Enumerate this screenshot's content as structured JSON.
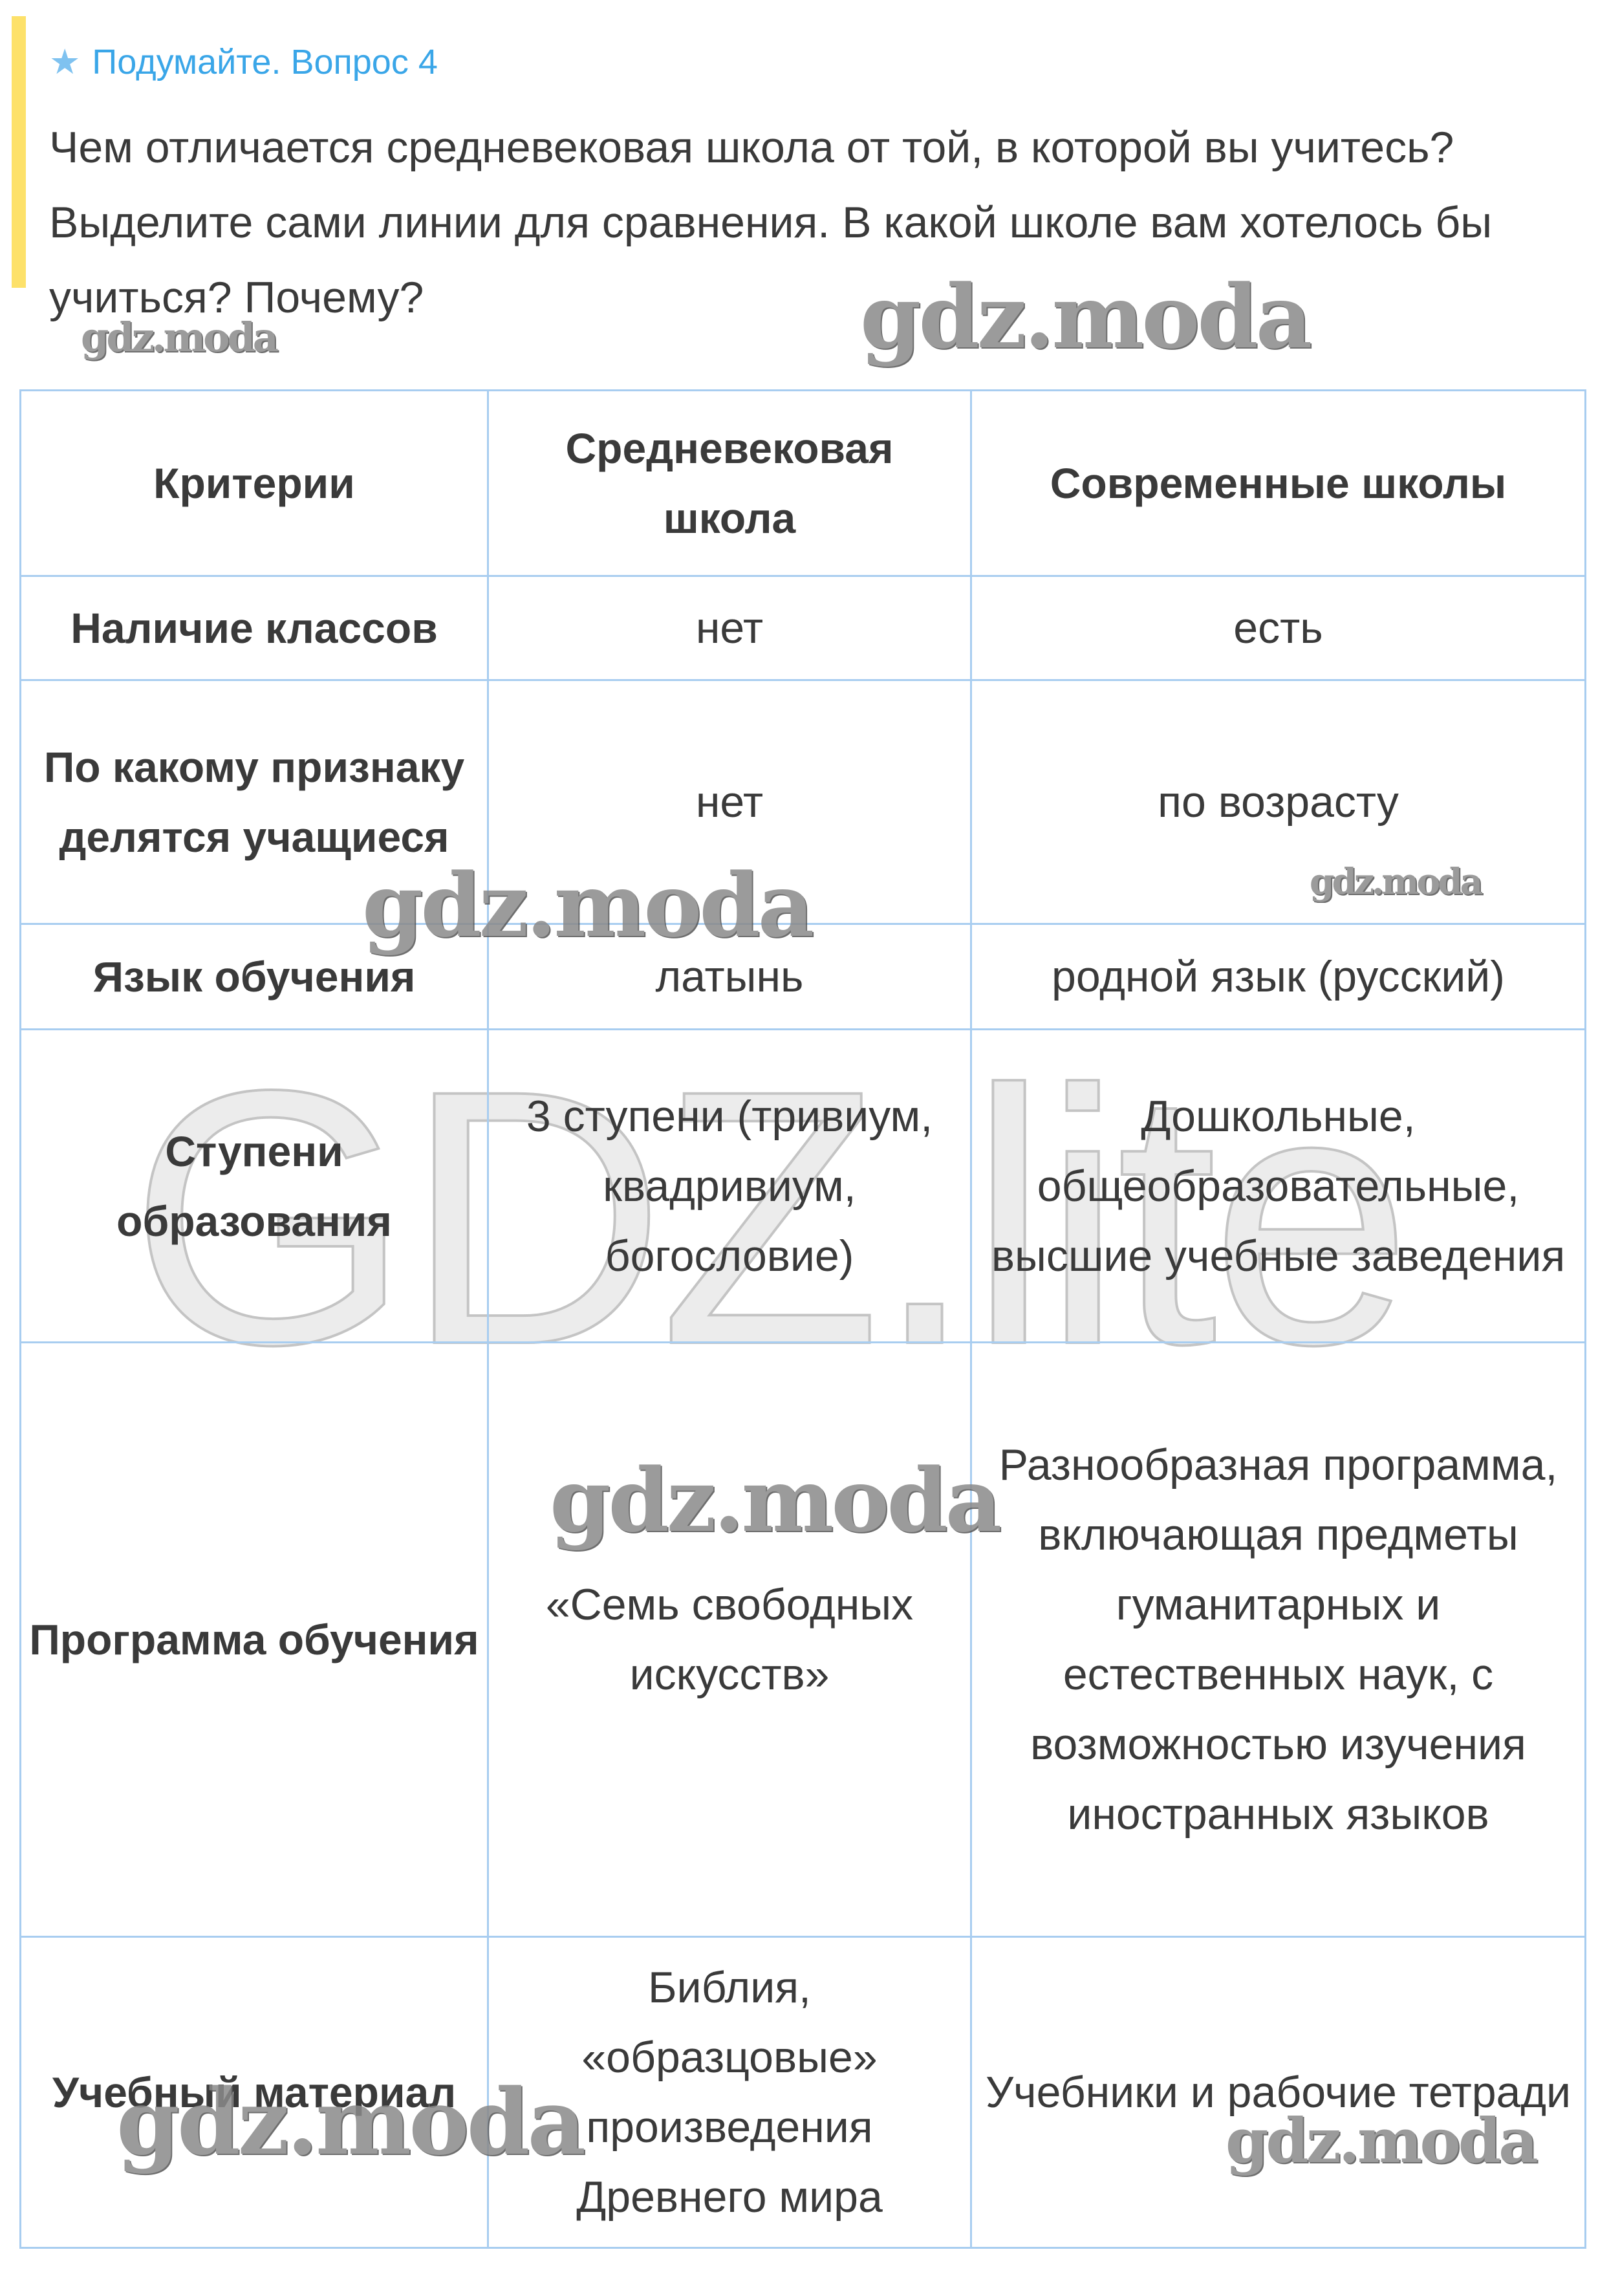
{
  "header": {
    "icon": "star-icon",
    "title": "Подумайте. Вопрос 4",
    "accent_color": "#3aa6e8",
    "bar_color": "#fde16a"
  },
  "question": "Чем отличается средневековая школа от той, в которой вы учитесь? Выделите сами линии для сравнения. В какой школе вам хотелось бы учиться? Почему?",
  "table": {
    "headers": [
      "Критерии",
      "Средневековая школа",
      "Современные школы"
    ],
    "rows": [
      [
        "Наличие классов",
        "нет",
        "есть"
      ],
      [
        "По какому признаку делятся учащиеся",
        "нет",
        "по возрасту"
      ],
      [
        "Язык обучения",
        "латынь",
        "родной язык (русский)"
      ],
      [
        "Ступени образования",
        "3 ступени (тривиум, квадривиум, богословие)",
        "Дошкольные, общеобразовательные, высшие учебные заведения"
      ],
      [
        "Программа обучения",
        "«Семь свободных искусств»",
        "Разнообразная программа, включающая предметы гуманитарных и естественных наук, с возможностью изучения иностранных языков"
      ],
      [
        "Учебный материал",
        "Библия, «образцовые» произведения Древнего мира",
        "Учебники и рабочие тетради"
      ]
    ]
  },
  "watermarks": {
    "small": "gdz.moda",
    "large": "GDZ.lite"
  }
}
